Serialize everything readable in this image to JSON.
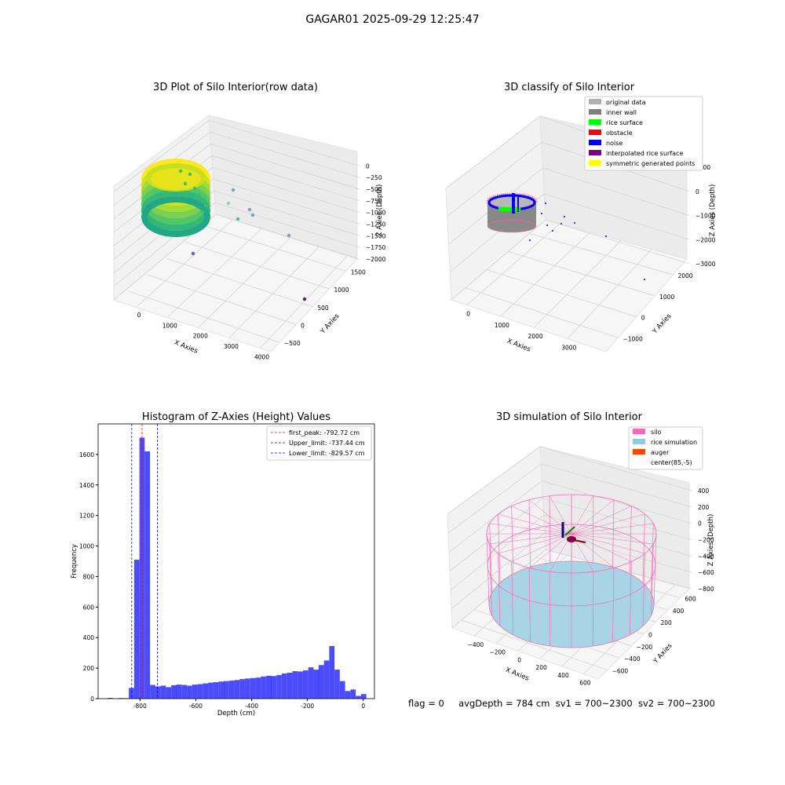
{
  "suptitle": "GAGAR01 2025-09-29 12:25:47",
  "footer": {
    "flag": "flag = 0",
    "avg": "avgDepth = 784 cm",
    "sv1": "sv1 = 700~2300",
    "sv2": "sv2 = 700~2300"
  },
  "colors": {
    "original": "#b0b0b0",
    "inner_wall": "#808080",
    "rice_surface": "#00ff00",
    "obstacle": "#ff0000",
    "noise": "#0000ff",
    "interp": "#800080",
    "symmetric": "#ffff00",
    "silo": "#ff69b4",
    "rice_sim": "#87ceeb",
    "auger": "#ff4500",
    "hist": "#0000ff"
  },
  "chart_data": [
    {
      "type": "scatter",
      "title": "3D Plot of Silo Interior(row data)",
      "xlabel": "X Axies",
      "ylabel": "Y Axies",
      "zlabel": "Z Axies (Depth)",
      "x_ticks": [
        "0",
        "1000",
        "2000",
        "3000",
        "4000"
      ],
      "y_ticks": [
        "−500",
        "0",
        "500",
        "1000",
        "1500"
      ],
      "z_ticks": [
        "0",
        "−250",
        "−500",
        "−750",
        "−1000",
        "−1250",
        "−1500",
        "−1750",
        "−2000"
      ],
      "grid": true
    },
    {
      "type": "scatter",
      "title": "3D classify of Silo Interior",
      "xlabel": "X Axies",
      "ylabel": "Y Axies",
      "zlabel": "Z Axies (Depth)",
      "x_ticks": [
        "0",
        "1000",
        "2000",
        "3000"
      ],
      "y_ticks": [
        "−1000",
        "0",
        "1000",
        "2000"
      ],
      "z_ticks": [
        "1000",
        "0",
        "−1000",
        "−2000",
        "−3000"
      ],
      "legend": [
        "original data",
        "inner wall",
        "rice surface",
        "obstacle",
        "noise",
        "interpolated rice surface",
        "symmetric generated points"
      ],
      "legend_loc": "upper right",
      "grid": true
    },
    {
      "type": "bar",
      "title": "Histogram of Z-Axies (Height) Values",
      "xlabel": "Depth (cm)",
      "ylabel": "Frequency",
      "xlim": [
        -950,
        40
      ],
      "ylim": [
        0,
        1800
      ],
      "x_ticks": [
        -800,
        -600,
        -400,
        -200,
        0
      ],
      "y_ticks": [
        0,
        200,
        400,
        600,
        800,
        1000,
        1200,
        1400,
        1600
      ],
      "bin_width": 18.85,
      "bins": [
        {
          "x": -916,
          "v": 5
        },
        {
          "x": -897,
          "v": 0
        },
        {
          "x": -878,
          "v": 4
        },
        {
          "x": -859,
          "v": 3
        },
        {
          "x": -840,
          "v": 70
        },
        {
          "x": -821,
          "v": 910
        },
        {
          "x": -802,
          "v": 1710
        },
        {
          "x": -783,
          "v": 1620
        },
        {
          "x": -764,
          "v": 90
        },
        {
          "x": -745,
          "v": 80
        },
        {
          "x": -726,
          "v": 85
        },
        {
          "x": -707,
          "v": 75
        },
        {
          "x": -688,
          "v": 88
        },
        {
          "x": -670,
          "v": 92
        },
        {
          "x": -651,
          "v": 90
        },
        {
          "x": -632,
          "v": 85
        },
        {
          "x": -613,
          "v": 92
        },
        {
          "x": -594,
          "v": 95
        },
        {
          "x": -575,
          "v": 100
        },
        {
          "x": -556,
          "v": 105
        },
        {
          "x": -537,
          "v": 108
        },
        {
          "x": -518,
          "v": 112
        },
        {
          "x": -500,
          "v": 115
        },
        {
          "x": -481,
          "v": 118
        },
        {
          "x": -462,
          "v": 122
        },
        {
          "x": -443,
          "v": 128
        },
        {
          "x": -424,
          "v": 132
        },
        {
          "x": -405,
          "v": 135
        },
        {
          "x": -386,
          "v": 138
        },
        {
          "x": -367,
          "v": 145
        },
        {
          "x": -348,
          "v": 150
        },
        {
          "x": -330,
          "v": 148
        },
        {
          "x": -311,
          "v": 155
        },
        {
          "x": -292,
          "v": 165
        },
        {
          "x": -273,
          "v": 170
        },
        {
          "x": -254,
          "v": 180
        },
        {
          "x": -235,
          "v": 178
        },
        {
          "x": -216,
          "v": 185
        },
        {
          "x": -197,
          "v": 205
        },
        {
          "x": -178,
          "v": 190
        },
        {
          "x": -160,
          "v": 220
        },
        {
          "x": -141,
          "v": 250
        },
        {
          "x": -122,
          "v": 345
        },
        {
          "x": -103,
          "v": 190
        },
        {
          "x": -84,
          "v": 115
        },
        {
          "x": -65,
          "v": 50
        },
        {
          "x": -46,
          "v": 60
        },
        {
          "x": -27,
          "v": 18
        },
        {
          "x": -8,
          "v": 30
        }
      ],
      "vlines": [
        {
          "label": "first_peak: -792.72 cm",
          "x": -792.72,
          "color": "#ff0000"
        },
        {
          "label": "Upper_limit: -737.44 cm",
          "x": -737.44,
          "color": "#0000ff"
        },
        {
          "label": "Lower_limit: -829.57 cm",
          "x": -829.57,
          "color": "#0000ff"
        }
      ]
    },
    {
      "type": "scatter",
      "title": "3D simulation of Silo Interior",
      "xlabel": "X Axies",
      "ylabel": "Y Axies",
      "zlabel": "Z Axies (Depth)",
      "x_ticks": [
        "−400",
        "−200",
        "0",
        "200",
        "400",
        "600"
      ],
      "y_ticks": [
        "−600",
        "−400",
        "−200",
        "0",
        "200",
        "400",
        "600"
      ],
      "z_ticks": [
        "400",
        "200",
        "0",
        "−200",
        "−400",
        "−600",
        "−800"
      ],
      "legend": [
        "silo",
        "rice simulation",
        "auger",
        "center(85,-5)"
      ],
      "legend_loc": "upper right",
      "grid": true
    }
  ]
}
